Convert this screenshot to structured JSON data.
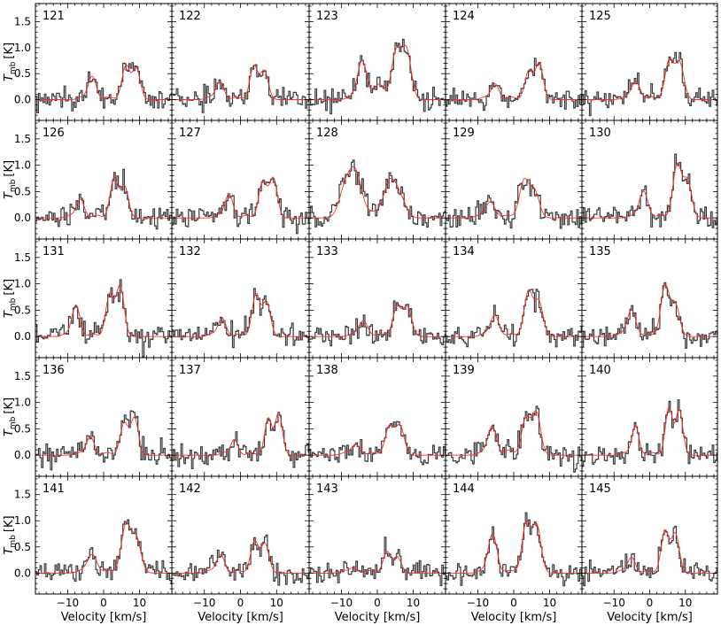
{
  "chart_data": {
    "type": "line",
    "layout": "5x5 grid of spectrum panels with shared axes",
    "x_label": "Velocity [km/s]",
    "y_label_main": "T",
    "y_label_sub": "mb",
    "y_label_unit": "[K]",
    "xlim": [
      -19,
      19
    ],
    "ylim": [
      -0.4,
      1.85
    ],
    "x_ticks": [
      -10,
      0,
      10
    ],
    "x_tick_labels": [
      "−10",
      "0",
      "10"
    ],
    "y_ticks": [
      0.0,
      0.5,
      1.0,
      1.5
    ],
    "y_tick_labels": [
      "0.0",
      "0.5",
      "1.0",
      "1.5"
    ],
    "grid": false,
    "colors": {
      "observed": "#3a3a3a",
      "fit": "#ff2a2a"
    },
    "series_types": [
      "observed spectrum (step)",
      "Gaussian hyperfine fit"
    ],
    "component_velocities": [
      -7.6,
      -4.7,
      0.0,
      4.7,
      7.6
    ],
    "panels": [
      {
        "label": "121",
        "center_velocity": 1.5,
        "width": 1.1,
        "amplitudes": [
          0.05,
          0.45,
          0.05,
          0.65,
          0.6
        ]
      },
      {
        "label": "122",
        "center_velocity": -1.0,
        "width": 1.1,
        "amplitudes": [
          0.05,
          0.35,
          0.05,
          0.65,
          0.55
        ]
      },
      {
        "label": "123",
        "center_velocity": 0.5,
        "width": 1.3,
        "amplitudes": [
          0.05,
          0.75,
          0.3,
          0.9,
          0.95
        ]
      },
      {
        "label": "124",
        "center_velocity": -0.5,
        "width": 1.1,
        "amplitudes": [
          0.05,
          0.3,
          0.05,
          0.55,
          0.7
        ]
      },
      {
        "label": "125",
        "center_velocity": 0.8,
        "width": 1.2,
        "amplitudes": [
          0.05,
          0.35,
          0.05,
          0.75,
          0.7
        ]
      },
      {
        "label": "126",
        "center_velocity": -1.8,
        "width": 1.1,
        "amplitudes": [
          0.05,
          0.35,
          0.05,
          0.75,
          0.6
        ]
      },
      {
        "label": "127",
        "center_velocity": 1.5,
        "width": 1.1,
        "amplitudes": [
          0.05,
          0.45,
          0.05,
          0.7,
          0.75
        ]
      },
      {
        "label": "128",
        "center_velocity": -1.3,
        "width": 1.7,
        "amplitudes": [
          0.55,
          0.8,
          0.1,
          0.65,
          0.35
        ]
      },
      {
        "label": "129",
        "center_velocity": -1.8,
        "width": 1.3,
        "amplitudes": [
          0.05,
          0.3,
          0.05,
          0.7,
          0.5
        ]
      },
      {
        "label": "130",
        "center_velocity": 3.0,
        "width": 1.2,
        "amplitudes": [
          0.05,
          0.5,
          0.05,
          1.0,
          0.7
        ]
      },
      {
        "label": "131",
        "center_velocity": -3.0,
        "width": 1.1,
        "amplitudes": [
          0.05,
          0.6,
          0.05,
          0.8,
          0.95
        ]
      },
      {
        "label": "132",
        "center_velocity": -0.4,
        "width": 1.1,
        "amplitudes": [
          0.05,
          0.35,
          0.05,
          0.8,
          0.65
        ]
      },
      {
        "label": "133",
        "center_velocity": 0.8,
        "width": 1.2,
        "amplitudes": [
          0.05,
          0.3,
          0.05,
          0.55,
          0.55
        ]
      },
      {
        "label": "134",
        "center_velocity": -0.6,
        "width": 1.2,
        "amplitudes": [
          0.05,
          0.4,
          0.05,
          0.85,
          0.65
        ]
      },
      {
        "label": "135",
        "center_velocity": -0.4,
        "width": 1.2,
        "amplitudes": [
          0.05,
          0.5,
          0.05,
          0.95,
          0.6
        ]
      },
      {
        "label": "136",
        "center_velocity": 1.0,
        "width": 1.1,
        "amplitudes": [
          0.05,
          0.35,
          0.05,
          0.6,
          0.7
        ]
      },
      {
        "label": "137",
        "center_velocity": 3.0,
        "width": 1.0,
        "amplitudes": [
          0.05,
          0.3,
          0.05,
          0.7,
          0.8
        ]
      },
      {
        "label": "138",
        "center_velocity": -1.3,
        "width": 1.2,
        "amplitudes": [
          0.05,
          0.2,
          0.05,
          0.55,
          0.55
        ]
      },
      {
        "label": "139",
        "center_velocity": -1.3,
        "width": 1.2,
        "amplitudes": [
          0.05,
          0.55,
          0.1,
          0.7,
          0.8
        ]
      },
      {
        "label": "140",
        "center_velocity": 0.7,
        "width": 1.0,
        "amplitudes": [
          0.05,
          0.55,
          0.05,
          0.9,
          0.85
        ]
      },
      {
        "label": "141",
        "center_velocity": 1.5,
        "width": 1.3,
        "amplitudes": [
          0.05,
          0.35,
          0.05,
          0.9,
          0.65
        ]
      },
      {
        "label": "142",
        "center_velocity": -0.8,
        "width": 1.1,
        "amplitudes": [
          0.05,
          0.35,
          0.05,
          0.6,
          0.55
        ]
      },
      {
        "label": "143",
        "center_velocity": -2.0,
        "width": 1.1,
        "amplitudes": [
          0.05,
          0.1,
          0.05,
          0.4,
          0.3
        ]
      },
      {
        "label": "144",
        "center_velocity": -1.2,
        "width": 1.2,
        "amplitudes": [
          0.05,
          0.75,
          0.05,
          0.95,
          0.9
        ]
      },
      {
        "label": "145",
        "center_velocity": -0.4,
        "width": 1.1,
        "amplitudes": [
          0.05,
          0.3,
          0.05,
          0.8,
          0.75
        ]
      }
    ]
  }
}
